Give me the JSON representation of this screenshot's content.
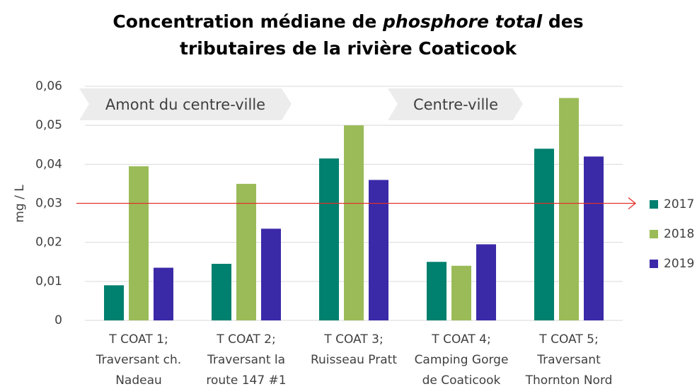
{
  "chart_data": {
    "type": "bar",
    "title_lines": [
      [
        "Concentration médiane de ",
        "phosphore total",
        " des"
      ],
      [
        "tributaires de la rivière Coaticook"
      ]
    ],
    "y_label": "mg / L",
    "categories": [
      [
        "T COAT 1;",
        "Traversant ch.",
        "Nadeau"
      ],
      [
        "T COAT 2;",
        "Traversant la",
        "route 147 #1"
      ],
      [
        "T COAT 3;",
        "Ruisseau Pratt"
      ],
      [
        "T COAT 4;",
        "Camping Gorge",
        "de Coaticook"
      ],
      [
        "T COAT 5;",
        "Traversant",
        "Thornton Nord"
      ]
    ],
    "series": [
      {
        "name": "2017",
        "color": "#00806e",
        "values": [
          0.009,
          0.0145,
          0.0415,
          0.015,
          0.044
        ]
      },
      {
        "name": "2018",
        "color": "#9bbb59",
        "values": [
          0.0395,
          0.035,
          0.05,
          0.014,
          0.057
        ]
      },
      {
        "name": "2019",
        "color": "#3a2aa8",
        "values": [
          0.0135,
          0.0235,
          0.036,
          0.0195,
          0.042
        ]
      }
    ],
    "ylim": [
      0,
      0.06
    ],
    "yticks": [
      0,
      {
        "value": 0.01,
        "label": "0,01"
      },
      {
        "value": 0.02,
        "label": "0,02"
      },
      {
        "value": 0.03,
        "label": "0,03"
      },
      {
        "value": 0.04,
        "label": "0,04"
      },
      {
        "value": 0.05,
        "label": "0,05"
      },
      {
        "value": 0.06,
        "label": "0,06"
      }
    ],
    "grid": true,
    "reference_line": {
      "value": 0.03,
      "color": "#e0302a"
    },
    "annotations": [
      "Amont du centre-ville",
      "Centre-ville"
    ],
    "legend": "right"
  }
}
